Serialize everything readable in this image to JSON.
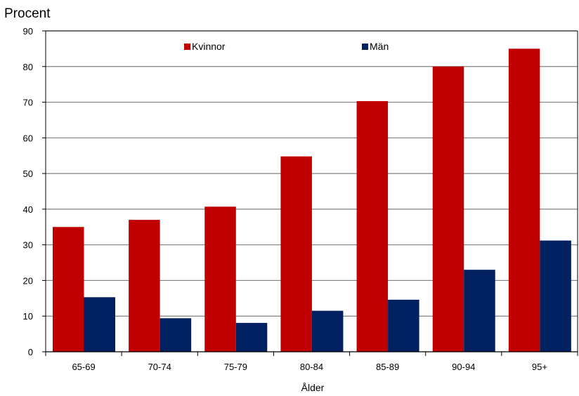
{
  "colors": {
    "kvinnor": "#c00000",
    "man": "#002060",
    "gridline": "#808080",
    "axis": "#000000"
  },
  "chart_data": {
    "type": "bar",
    "ylabel": "Procent",
    "xlabel": "Ålder",
    "ylim": [
      0,
      90
    ],
    "yticks": [
      0,
      10,
      20,
      30,
      40,
      50,
      60,
      70,
      80,
      90
    ],
    "grid": true,
    "legend_position": "top",
    "categories": [
      "65-69",
      "70-74",
      "75-79",
      "80-84",
      "85-89",
      "90-94",
      "95+"
    ],
    "series": [
      {
        "name": "Kvinnor",
        "color": "#c00000",
        "values": [
          35,
          37,
          40.7,
          54.8,
          70.3,
          80,
          85
        ]
      },
      {
        "name": "Män",
        "color": "#002060",
        "values": [
          15.3,
          9.4,
          8.1,
          11.5,
          14.6,
          23,
          31.2
        ]
      }
    ]
  }
}
